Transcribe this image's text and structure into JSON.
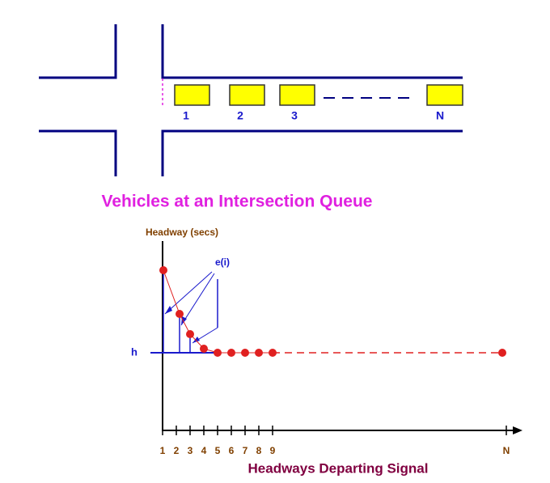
{
  "queue": {
    "vehicles": [
      "1",
      "2",
      "3",
      "N"
    ]
  },
  "title": "Vehicles at an Intersection Queue",
  "plot": {
    "y_axis_label": "Headway (secs)",
    "h_label": "h",
    "e_label": "e(i)",
    "x_ticks": [
      "1",
      "2",
      "3",
      "4",
      "5",
      "6",
      "7",
      "8",
      "9",
      "N"
    ],
    "x_axis_label": "Headways Departing Signal"
  }
}
